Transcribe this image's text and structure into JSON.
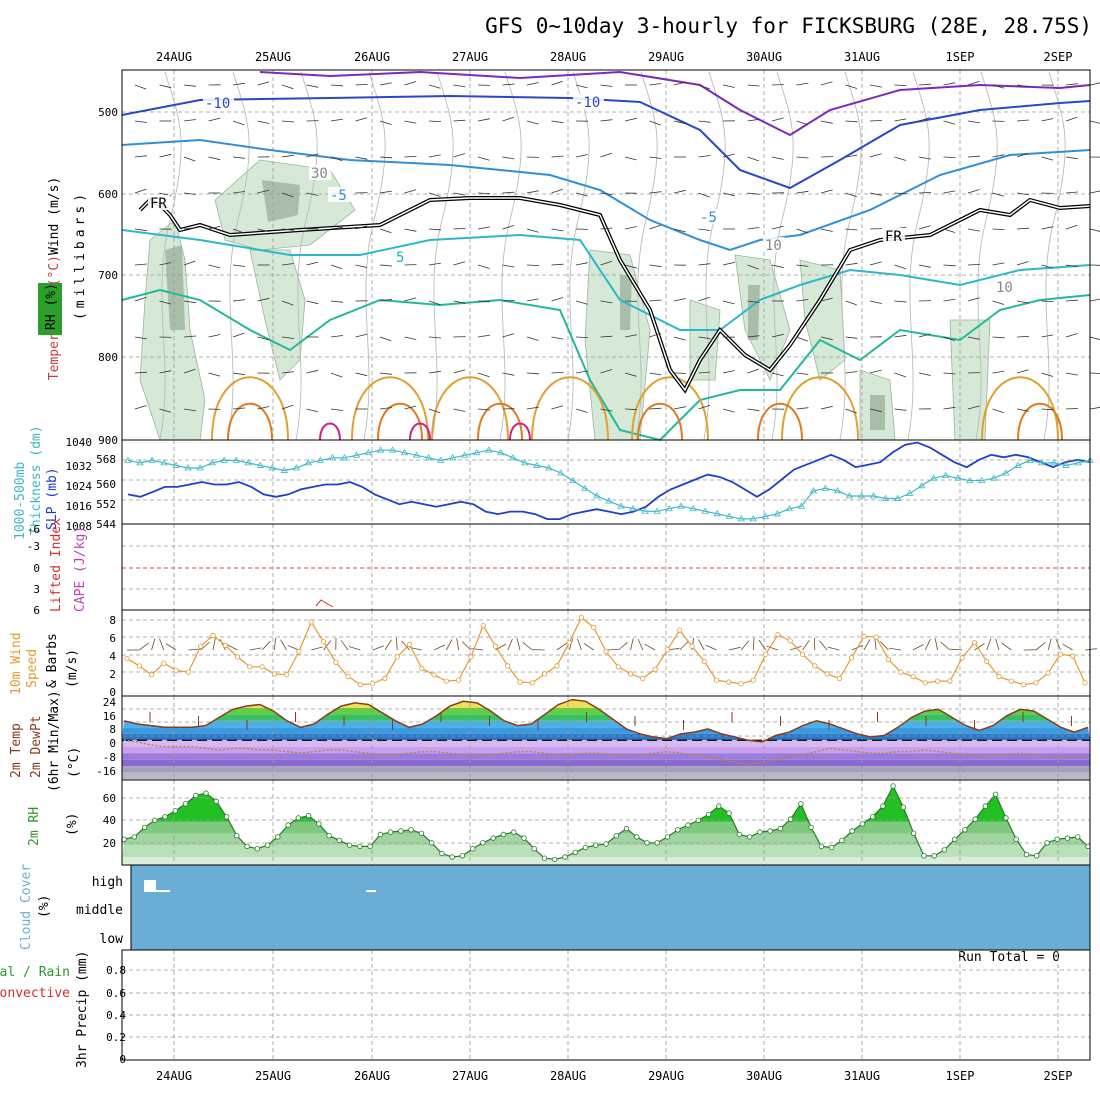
{
  "title": "GFS 0~10day 3-hourly for FICKSBURG (28E, 28.75S)",
  "date_labels": [
    "24AUG",
    "25AUG",
    "26AUG",
    "27AUG",
    "28AUG",
    "29AUG",
    "30AUG",
    "31AUG",
    "1SEP",
    "2SEP"
  ],
  "run_total": "Run Total = 0",
  "colors": {
    "sfc_temp": "#8b3a1a",
    "dewpt": "#c08040",
    "slp": "#1f3fc8",
    "thickness": "#3fb8c8",
    "wind10": "#e59a30",
    "rh2m": "#2a9a2a",
    "cloud": "#6aaed6",
    "lifted": "#d03030",
    "frz": "#000000"
  },
  "panels": {
    "upper_air": {
      "y_axis_title": "(millibars)",
      "y_labels": [
        "RH (%)",
        "Temperature (°C)",
        "Wind (m/s)"
      ],
      "y_ticks": [
        "500",
        "600",
        "700",
        "800",
        "900"
      ],
      "contour_labels": [
        "-10",
        "-10",
        "-5",
        "-5",
        "5",
        "FR",
        "FR",
        "30",
        "10",
        "10"
      ]
    },
    "slp_thickness": {
      "y_labels": [
        "1000-500mb",
        "Thickness (dm)",
        "SLP (mb)"
      ],
      "left_ticks": [
        "544",
        "552",
        "560",
        "568"
      ],
      "right_ticks": [
        "1008",
        "1016",
        "1024",
        "1032",
        "1040"
      ]
    },
    "cape_li": {
      "y_labels": [
        "Lifted Index",
        "CAPE (J/kg)"
      ],
      "ticks": [
        "6",
        "3",
        "0",
        "-3",
        "-6"
      ]
    },
    "wind10m": {
      "y_labels": [
        "10m Wind",
        "Speed",
        "& Barbs",
        "(m/s)"
      ],
      "ticks": [
        "0",
        "2",
        "4",
        "6",
        "8"
      ]
    },
    "temp2m": {
      "y_labels": [
        "2m Temp",
        "2m DewPt",
        "(6hr Min/Max)",
        "(°C)"
      ],
      "ticks": [
        "-16",
        "-8",
        "0",
        "8",
        "16",
        "24"
      ]
    },
    "rh2m": {
      "y_labels": [
        "2m RH",
        "(%)"
      ],
      "ticks": [
        "20",
        "40",
        "60"
      ]
    },
    "cloud": {
      "y_labels": [
        "Cloud Cover",
        "(%)"
      ],
      "levels": [
        "high",
        "middle",
        "low"
      ]
    },
    "precip": {
      "y_labels": [
        "3hr Precip (mm)",
        "Total / Rain",
        "Convective"
      ],
      "ticks": [
        "0",
        "0.2",
        "0.4",
        "0.6",
        "0.8"
      ]
    }
  },
  "chart_data": [
    {
      "type": "line",
      "title": "10m Wind Speed",
      "x_unit": "3-hour steps from 23AUG 12Z",
      "y": [
        3.5,
        2.7,
        1.7,
        3.0,
        2.2,
        2.0,
        4.9,
        6.1,
        5.0,
        3.7,
        2.6,
        2.6,
        1.8,
        1.7,
        4.3,
        7.6,
        5.4,
        3.1,
        1.5,
        0.6,
        0.7,
        1.3,
        3.7,
        5.1,
        2.4,
        1.7,
        1.0,
        1.1,
        3.7,
        7.2,
        4.9,
        2.7,
        0.9,
        0.8,
        1.8,
        2.7,
        5.3,
        8.1,
        7.0,
        4.3,
        2.6,
        1.8,
        1.3,
        2.3,
        4.5,
        6.7,
        4.9,
        3.2,
        1.1,
        0.9,
        0.7,
        1.1,
        4.0,
        6.2,
        5.5,
        4.0,
        2.7,
        1.8,
        1.3,
        3.6,
        6.0,
        5.9,
        3.4,
        2.0,
        1.5,
        0.8,
        1.0,
        1.0,
        3.6,
        5.3,
        3.2,
        1.5,
        1.0,
        0.6,
        0.8,
        1.9,
        4.0,
        3.8,
        0.8
      ],
      "ylim": [
        0,
        8.5
      ]
    },
    {
      "type": "line",
      "title": "SLP (mb)",
      "y": [
        1020,
        1019,
        1021,
        1023,
        1023,
        1024,
        1025,
        1024,
        1024,
        1025,
        1023,
        1020,
        1019,
        1020,
        1022,
        1023,
        1024,
        1024,
        1025,
        1023,
        1020,
        1018,
        1016,
        1017,
        1016,
        1015,
        1016,
        1017,
        1016,
        1013,
        1012,
        1013,
        1013,
        1012,
        1010,
        1010,
        1012,
        1013,
        1014,
        1013,
        1012,
        1013,
        1015,
        1019,
        1022,
        1024,
        1026,
        1028,
        1027,
        1025,
        1022,
        1019,
        1022,
        1026,
        1030,
        1032,
        1034,
        1036,
        1034,
        1031,
        1032,
        1033,
        1037,
        1040,
        1041,
        1039,
        1036,
        1033,
        1031,
        1034,
        1036,
        1035,
        1036,
        1035,
        1033,
        1031,
        1033,
        1034,
        1033
      ],
      "ylim": [
        1008,
        1042
      ]
    },
    {
      "type": "line",
      "title": "1000-500mb Thickness (dm)",
      "y": [
        568,
        567,
        568,
        567,
        566,
        565,
        565,
        567,
        568,
        568,
        567,
        566,
        565,
        564,
        565,
        567,
        568,
        569,
        569,
        570,
        571,
        572,
        572,
        571,
        570,
        569,
        568,
        569,
        570,
        571,
        572,
        571,
        569,
        567,
        566,
        565,
        563,
        560,
        557,
        554,
        552,
        550,
        549,
        548,
        548,
        549,
        550,
        549,
        548,
        547,
        546,
        545,
        545,
        546,
        547,
        549,
        550,
        556,
        557,
        556,
        554,
        554,
        554,
        553,
        553,
        555,
        558,
        561,
        562,
        561,
        560,
        560,
        561,
        563,
        566,
        568,
        567,
        567,
        566,
        567,
        568
      ],
      "ylim": [
        543,
        576
      ]
    },
    {
      "type": "area",
      "title": "2m RH",
      "y": [
        25,
        27,
        35,
        41,
        44,
        49,
        55,
        62,
        64,
        57,
        44,
        28,
        19,
        17,
        20,
        27,
        37,
        43,
        45,
        38,
        28,
        24,
        20,
        19,
        19,
        29,
        31,
        32,
        33,
        30,
        22,
        13,
        10,
        11,
        17,
        22,
        26,
        29,
        31,
        26,
        17,
        9,
        8,
        10,
        14,
        18,
        20,
        21,
        28,
        34,
        27,
        22,
        22,
        27,
        33,
        37,
        41,
        46,
        53,
        47,
        29,
        27,
        31,
        32,
        34,
        42,
        55,
        35,
        19,
        18,
        24,
        32,
        38,
        44,
        53,
        70,
        52,
        30,
        11,
        11,
        16,
        25,
        33,
        42,
        53,
        63,
        43,
        25,
        12,
        11,
        22,
        25,
        26,
        27,
        19
      ],
      "ylim": [
        10,
        70
      ]
    },
    {
      "type": "line",
      "title": "2m Temp",
      "y": [
        12,
        10,
        9,
        8,
        8,
        8,
        9,
        14,
        19,
        21,
        22,
        18,
        12,
        8,
        10,
        16,
        21,
        23,
        22,
        17,
        12,
        8,
        10,
        15,
        21,
        24,
        23,
        18,
        12,
        9,
        10,
        16,
        22,
        25,
        24,
        19,
        13,
        7,
        4,
        2,
        1,
        4,
        5,
        7,
        4,
        2,
        0,
        -1,
        3,
        5,
        9,
        12,
        10,
        7,
        4,
        2,
        3,
        8,
        14,
        18,
        19,
        14,
        9,
        6,
        9,
        15,
        19,
        18,
        13,
        8,
        5,
        8
      ],
      "ylim": [
        -22,
        26
      ]
    },
    {
      "type": "line",
      "title": "2m DewPt",
      "y": [
        0,
        -1,
        -3,
        -4,
        -4,
        -4,
        -5,
        -6,
        -5,
        -5,
        -6,
        -6,
        -7,
        -8,
        -7,
        -6,
        -6,
        -7,
        -8,
        -9,
        -9,
        -8,
        -7,
        -7,
        -8,
        -9,
        -10,
        -9,
        -8,
        -7,
        -7,
        -8,
        -9,
        -9,
        -8,
        -8,
        -9,
        -10,
        -9,
        -8,
        -7,
        -8,
        -9,
        -10,
        -12,
        -14,
        -15,
        -14,
        -12,
        -10,
        -9,
        -7,
        -5,
        -6,
        -7,
        -8,
        -8,
        -7,
        -7,
        -6,
        -7,
        -8,
        -9,
        -10,
        -9,
        -9,
        -8,
        -9,
        -10,
        -10,
        -10,
        -10
      ],
      "ylim": [
        -22,
        26
      ]
    },
    {
      "type": "bar",
      "title": "3hr Precip",
      "values": [
        0
      ],
      "ylim": [
        0,
        0.9
      ]
    }
  ]
}
